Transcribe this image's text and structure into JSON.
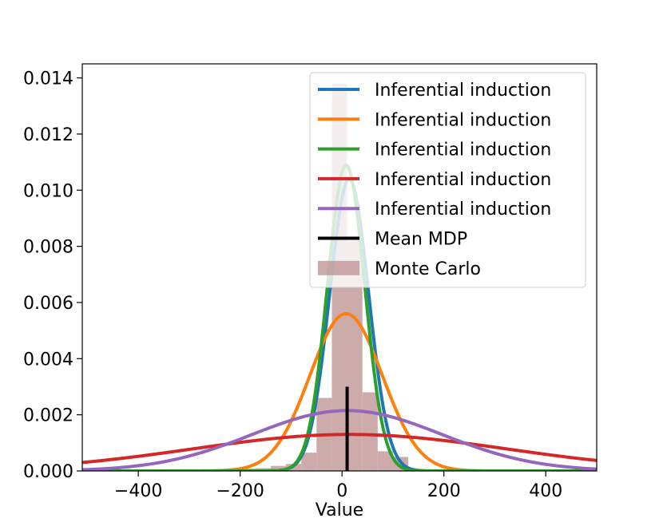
{
  "chart_data": {
    "type": "line",
    "title": "",
    "xlabel": "Value",
    "ylabel": "",
    "xlim": [
      -510,
      500
    ],
    "ylim": [
      0,
      0.0145
    ],
    "x_ticks": [
      -400,
      -200,
      0,
      200,
      400
    ],
    "x_tick_labels": [
      "−400",
      "−200",
      "0",
      "200",
      "400"
    ],
    "y_ticks": [
      0,
      0.002,
      0.004,
      0.006,
      0.008,
      0.01,
      0.012,
      0.014
    ],
    "y_tick_labels": [
      "0.000",
      "0.002",
      "0.004",
      "0.006",
      "0.008",
      "0.010",
      "0.012",
      "0.014"
    ],
    "series": [
      {
        "name": "Inferential induction",
        "color": "#1f77b4",
        "mean": 14,
        "peak": 0.0104
      },
      {
        "name": "Inferential induction",
        "color": "#ff7f0e",
        "mean": 8,
        "peak": 0.0056
      },
      {
        "name": "Inferential induction",
        "color": "#2ca02c",
        "mean": 8,
        "peak": 0.0109
      },
      {
        "name": "Inferential induction",
        "color": "#d62728",
        "mean": 15,
        "peak": 0.0013
      },
      {
        "name": "Inferential induction",
        "color": "#9467bd",
        "mean": 10,
        "peak": 0.00215
      }
    ],
    "mean_line": {
      "name": "Mean MDP",
      "color": "#000000",
      "x": 10,
      "y_max": 0.003
    },
    "histogram": {
      "name": "Monte Carlo",
      "color": "#bc8f8f",
      "bin_edges": [
        -380,
        -350,
        -320,
        -290,
        -260,
        -230,
        -200,
        -170,
        -140,
        -110,
        -80,
        -50,
        -20,
        10,
        40,
        70,
        100,
        130
      ],
      "counts": [
        2e-05,
        2e-05,
        2e-05,
        3e-05,
        5e-05,
        3e-05,
        8e-05,
        0.0001,
        0.00018,
        0.00025,
        0.00065,
        0.0026,
        0.0138,
        0.0082,
        0.0028,
        0.0007,
        0.0005
      ]
    },
    "legend_position": "top-right",
    "grid": false
  }
}
